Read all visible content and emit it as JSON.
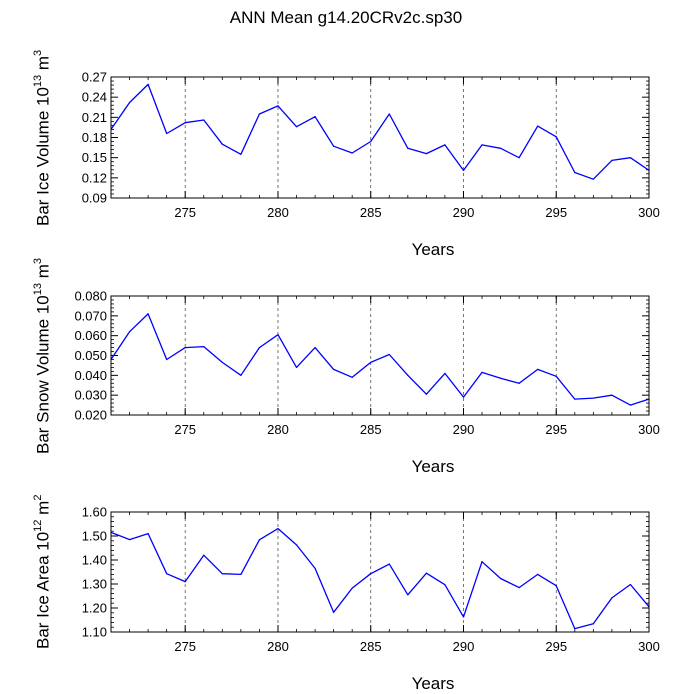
{
  "title": "ANN Mean g14.20CRv2c.sp30",
  "chart_data": [
    {
      "type": "line",
      "ylabel": {
        "main": "Bar Ice Volume 10",
        "exp": "13",
        "unit": " m",
        "unit_exp": "3"
      },
      "xlabel": "Years",
      "xlim": [
        271,
        300
      ],
      "ylim": [
        0.09,
        0.27
      ],
      "xticks": [
        275,
        280,
        285,
        290,
        295,
        300
      ],
      "yticks": [
        0.09,
        0.12,
        0.15,
        0.18,
        0.21,
        0.24,
        0.27
      ],
      "ytick_labels": [
        "0.09",
        "0.12",
        "0.15",
        "0.18",
        "0.21",
        "0.24",
        "0.27"
      ],
      "series": [
        {
          "name": "Bar Ice Volume",
          "color": "#0000ff",
          "x": [
            271,
            272,
            273,
            274,
            275,
            276,
            277,
            278,
            279,
            280,
            281,
            282,
            283,
            284,
            285,
            286,
            287,
            288,
            289,
            290,
            291,
            292,
            293,
            294,
            295,
            296,
            297,
            298,
            299,
            300
          ],
          "values": [
            0.192,
            0.232,
            0.259,
            0.186,
            0.202,
            0.206,
            0.17,
            0.155,
            0.215,
            0.227,
            0.196,
            0.211,
            0.167,
            0.157,
            0.174,
            0.215,
            0.164,
            0.156,
            0.169,
            0.131,
            0.169,
            0.164,
            0.15,
            0.197,
            0.181,
            0.128,
            0.118,
            0.146,
            0.15,
            0.131
          ]
        }
      ]
    },
    {
      "type": "line",
      "ylabel": {
        "main": "Bar Snow Volume 10",
        "exp": "13",
        "unit": " m",
        "unit_exp": "3"
      },
      "xlabel": "Years",
      "xlim": [
        271,
        300
      ],
      "ylim": [
        0.02,
        0.08
      ],
      "xticks": [
        275,
        280,
        285,
        290,
        295,
        300
      ],
      "yticks": [
        0.02,
        0.03,
        0.04,
        0.05,
        0.06,
        0.07,
        0.08
      ],
      "ytick_labels": [
        "0.020",
        "0.030",
        "0.040",
        "0.050",
        "0.060",
        "0.070",
        "0.080"
      ],
      "series": [
        {
          "name": "Bar Snow Volume",
          "color": "#0000ff",
          "x": [
            271,
            272,
            273,
            274,
            275,
            276,
            277,
            278,
            279,
            280,
            281,
            282,
            283,
            284,
            285,
            286,
            287,
            288,
            289,
            290,
            291,
            292,
            293,
            294,
            295,
            296,
            297,
            298,
            299,
            300
          ],
          "values": [
            0.048,
            0.062,
            0.071,
            0.048,
            0.054,
            0.0545,
            0.0465,
            0.04,
            0.054,
            0.0605,
            0.044,
            0.054,
            0.043,
            0.039,
            0.0465,
            0.0505,
            0.04,
            0.0305,
            0.041,
            0.029,
            0.0415,
            0.0385,
            0.036,
            0.043,
            0.0395,
            0.028,
            0.0285,
            0.03,
            0.025,
            0.028
          ]
        }
      ]
    },
    {
      "type": "line",
      "ylabel": {
        "main": "Bar Ice Area 10",
        "exp": "12",
        "unit": " m",
        "unit_exp": "2"
      },
      "xlabel": "Years",
      "xlim": [
        271,
        300
      ],
      "ylim": [
        1.1,
        1.6
      ],
      "xticks": [
        275,
        280,
        285,
        290,
        295,
        300
      ],
      "yticks": [
        1.1,
        1.2,
        1.3,
        1.4,
        1.5,
        1.6
      ],
      "ytick_labels": [
        "1.10",
        "1.20",
        "1.30",
        "1.40",
        "1.50",
        "1.60"
      ],
      "series": [
        {
          "name": "Bar Ice Area",
          "color": "#0000ff",
          "x": [
            271,
            272,
            273,
            274,
            275,
            276,
            277,
            278,
            279,
            280,
            281,
            282,
            283,
            284,
            285,
            286,
            287,
            288,
            289,
            290,
            291,
            292,
            293,
            294,
            295,
            296,
            297,
            298,
            299,
            300
          ],
          "values": [
            1.515,
            1.485,
            1.51,
            1.343,
            1.31,
            1.42,
            1.343,
            1.34,
            1.484,
            1.531,
            1.463,
            1.365,
            1.182,
            1.283,
            1.343,
            1.383,
            1.255,
            1.345,
            1.297,
            1.163,
            1.393,
            1.323,
            1.285,
            1.34,
            1.293,
            1.114,
            1.134,
            1.242,
            1.298,
            1.205
          ]
        }
      ]
    }
  ]
}
